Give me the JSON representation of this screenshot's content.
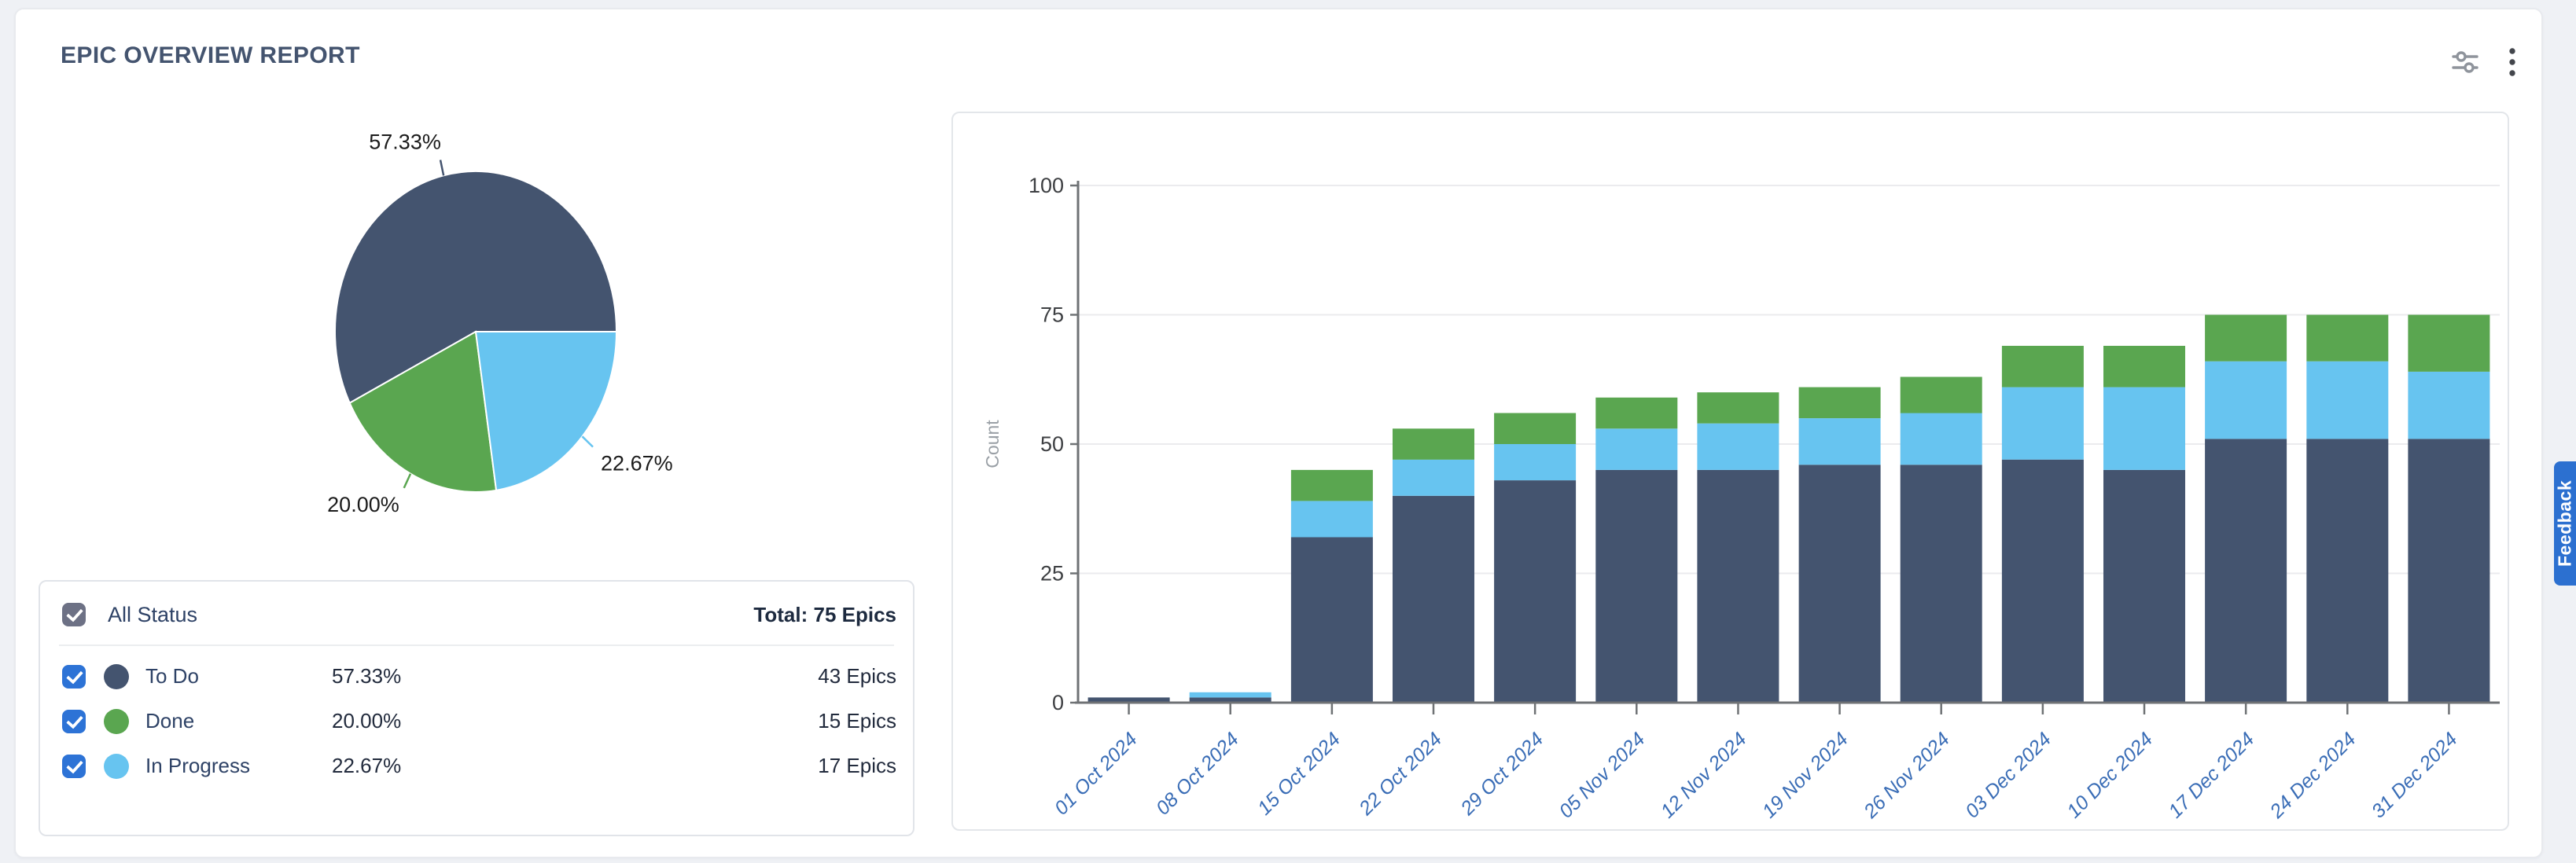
{
  "header": {
    "title": "EPIC OVERVIEW REPORT",
    "icons": [
      "filter-sliders-icon",
      "kebab-menu-icon"
    ]
  },
  "status_colors": {
    "To Do": "#44546f",
    "Done": "#5aa650",
    "In Progress": "#67c4f0"
  },
  "accent_colors": {
    "checkbox_blue": "#2d73d6",
    "checkbox_gray": "#6d7185",
    "feedback_blue": "#2c70d0",
    "x_axis_label_blue": "#3a6db6"
  },
  "legend": {
    "all_label": "All Status",
    "total_label": "Total: 75 Epics",
    "rows": [
      {
        "label": "To Do",
        "pct": "57.33%",
        "count": "43 Epics",
        "checked": true
      },
      {
        "label": "Done",
        "pct": "20.00%",
        "count": "15 Epics",
        "checked": true
      },
      {
        "label": "In Progress",
        "pct": "22.67%",
        "count": "17 Epics",
        "checked": true
      }
    ]
  },
  "feedback": {
    "label": "Feedback"
  },
  "chart_data": [
    {
      "type": "pie",
      "title": "Epic status distribution",
      "labels": [
        "To Do",
        "Done",
        "In Progress"
      ],
      "values": [
        57.33,
        20.0,
        22.67
      ],
      "display_labels": [
        "57.33%",
        "20.00%",
        "22.67%"
      ],
      "counts": [
        43,
        15,
        17
      ],
      "total_epics": 75
    },
    {
      "type": "bar",
      "stacked": true,
      "title": "Epic count by week",
      "categories": [
        "01 Oct 2024",
        "08 Oct 2024",
        "15 Oct 2024",
        "22 Oct 2024",
        "29 Oct 2024",
        "05 Nov 2024",
        "12 Nov 2024",
        "19 Nov 2024",
        "26 Nov 2024",
        "03 Dec 2024",
        "10 Dec 2024",
        "17 Dec 2024",
        "24 Dec 2024",
        "31 Dec 2024"
      ],
      "series": [
        {
          "name": "To Do",
          "values": [
            1,
            1,
            32,
            40,
            43,
            45,
            45,
            46,
            46,
            47,
            45,
            51,
            51,
            51
          ]
        },
        {
          "name": "In Progress",
          "values": [
            0,
            1,
            7,
            7,
            7,
            8,
            9,
            9,
            10,
            14,
            16,
            15,
            15,
            13
          ]
        },
        {
          "name": "Done",
          "values": [
            0,
            0,
            6,
            6,
            6,
            6,
            6,
            6,
            7,
            8,
            8,
            9,
            9,
            11
          ]
        }
      ],
      "xlabel": "",
      "ylabel": "Count",
      "ylim": [
        0,
        100
      ],
      "yticks": [
        0,
        25,
        50,
        75,
        100
      ],
      "grid": true,
      "legend_position": "none"
    }
  ]
}
